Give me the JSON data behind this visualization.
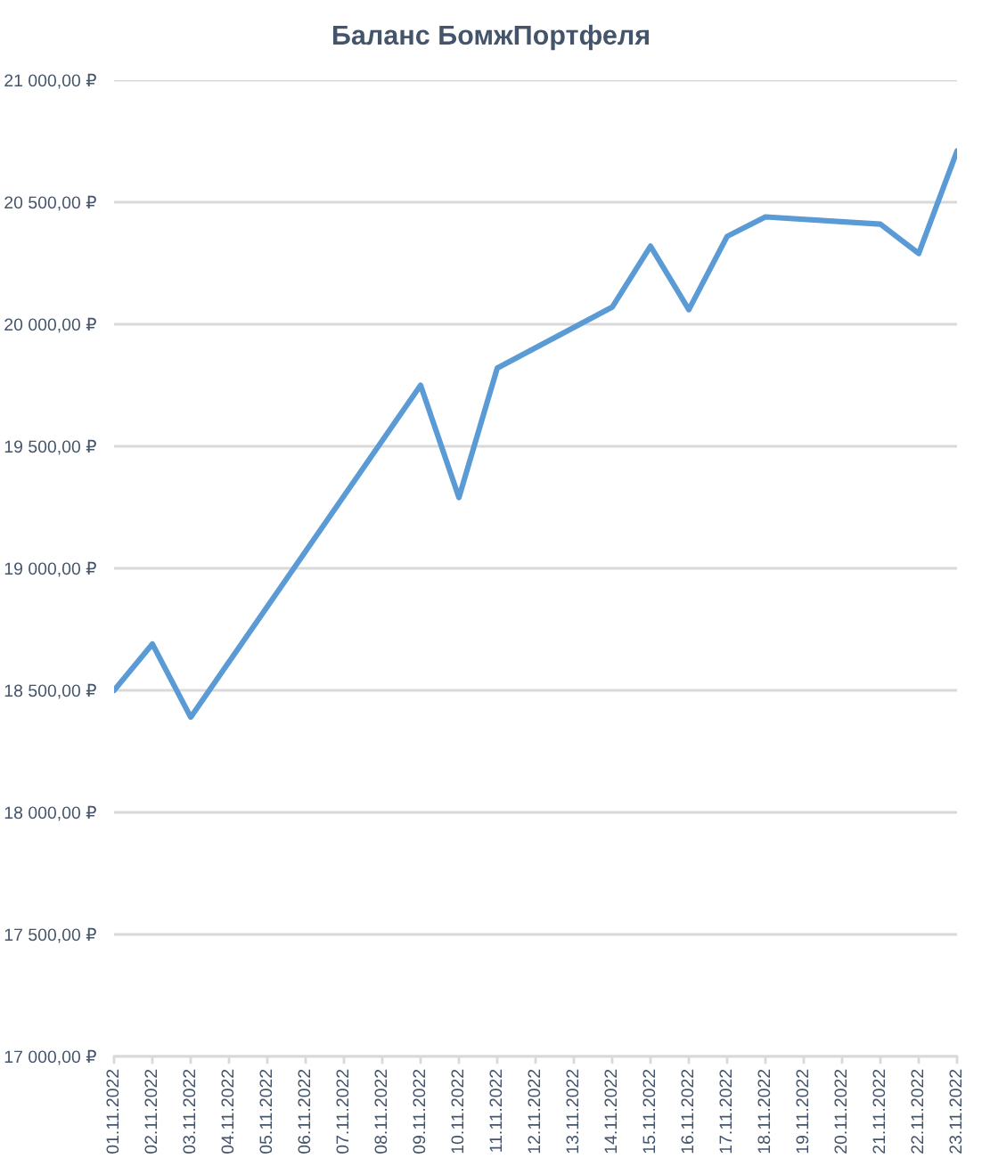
{
  "chart_data": {
    "type": "line",
    "title": "Баланс БомжПортфеля",
    "x": [
      "2022-11-01",
      "2022-11-02",
      "2022-11-03",
      "2022-11-09",
      "2022-11-10",
      "2022-11-11",
      "2022-11-14",
      "2022-11-15",
      "2022-11-16",
      "2022-11-17",
      "2022-11-18",
      "2022-11-21",
      "2022-11-22",
      "2022-11-23"
    ],
    "series": [
      {
        "color": "#5b9bd5",
        "values": [
          18500,
          18690,
          18390,
          19750,
          19290,
          19820,
          20070,
          20320,
          20060,
          20360,
          20440,
          20410,
          20290,
          20710
        ]
      }
    ],
    "xlim": [
      "2022-11-01",
      "2022-11-23"
    ],
    "xticks": [
      {
        "value": "2022-11-01",
        "label": "01.11.2022"
      },
      {
        "value": "2022-11-02",
        "label": "02.11.2022"
      },
      {
        "value": "2022-11-03",
        "label": "03.11.2022"
      },
      {
        "value": "2022-11-04",
        "label": "04.11.2022"
      },
      {
        "value": "2022-11-05",
        "label": "05.11.2022"
      },
      {
        "value": "2022-11-06",
        "label": "06.11.2022"
      },
      {
        "value": "2022-11-07",
        "label": "07.11.2022"
      },
      {
        "value": "2022-11-08",
        "label": "08.11.2022"
      },
      {
        "value": "2022-11-09",
        "label": "09.11.2022"
      },
      {
        "value": "2022-11-10",
        "label": "10.11.2022"
      },
      {
        "value": "2022-11-11",
        "label": "11.11.2022"
      },
      {
        "value": "2022-11-12",
        "label": "12.11.2022"
      },
      {
        "value": "2022-11-13",
        "label": "13.11.2022"
      },
      {
        "value": "2022-11-14",
        "label": "14.11.2022"
      },
      {
        "value": "2022-11-15",
        "label": "15.11.2022"
      },
      {
        "value": "2022-11-16",
        "label": "16.11.2022"
      },
      {
        "value": "2022-11-17",
        "label": "17.11.2022"
      },
      {
        "value": "2022-11-18",
        "label": "18.11.2022"
      },
      {
        "value": "2022-11-19",
        "label": "19.11.2022"
      },
      {
        "value": "2022-11-20",
        "label": "20.11.2022"
      },
      {
        "value": "2022-11-21",
        "label": "21.11.2022"
      },
      {
        "value": "2022-11-22",
        "label": "22.11.2022"
      },
      {
        "value": "2022-11-23",
        "label": "23.11.2022"
      }
    ],
    "ylim": [
      17000,
      21000
    ],
    "yticks": [
      {
        "value": 17000,
        "label": "17 000,00 ₽"
      },
      {
        "value": 17500,
        "label": "17 500,00 ₽"
      },
      {
        "value": 18000,
        "label": "18 000,00 ₽"
      },
      {
        "value": 18500,
        "label": "18 500,00 ₽"
      },
      {
        "value": 19000,
        "label": "19 000,00 ₽"
      },
      {
        "value": 19500,
        "label": "19 500,00 ₽"
      },
      {
        "value": 20000,
        "label": "20 000,00 ₽"
      },
      {
        "value": 20500,
        "label": "20 500,00 ₽"
      },
      {
        "value": 21000,
        "label": "21 000,00 ₽"
      }
    ],
    "grid": "y",
    "marker": "none",
    "line_style": "solid"
  }
}
